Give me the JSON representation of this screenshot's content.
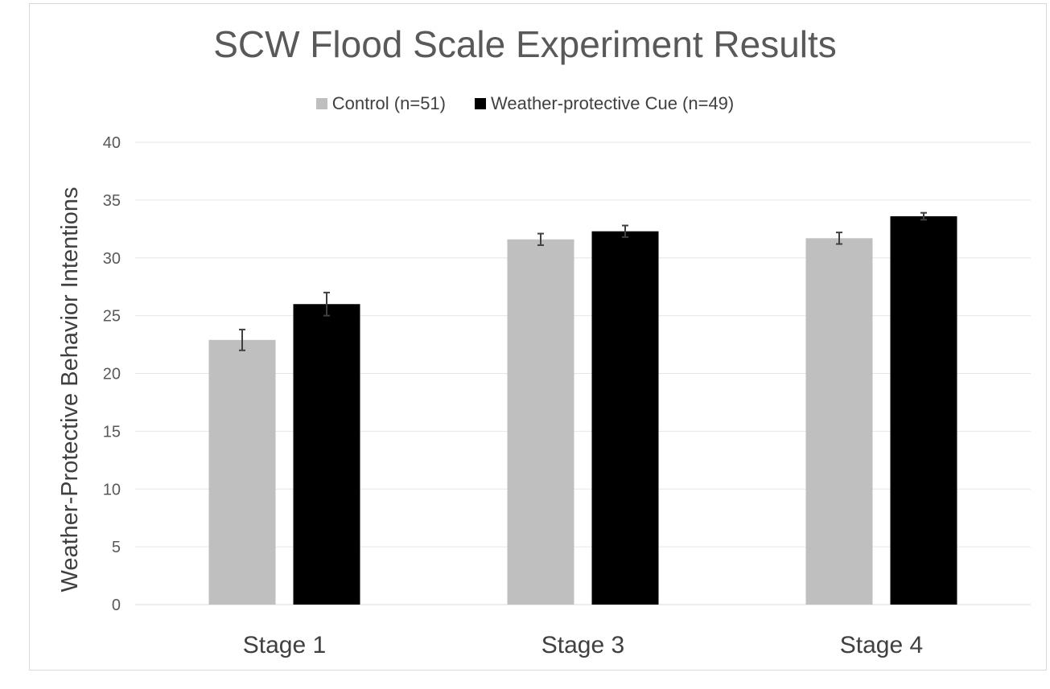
{
  "chart_data": {
    "type": "bar",
    "title": "SCW Flood Scale Experiment Results",
    "xlabel": "",
    "ylabel": "Weather-Protective Behavior Intentions",
    "categories": [
      "Stage 1",
      "Stage 3",
      "Stage 4"
    ],
    "series": [
      {
        "name": "Control (n=51)",
        "color": "#bfbfbf",
        "values": [
          22.9,
          31.6,
          31.7
        ],
        "errors": [
          0.9,
          0.5,
          0.5
        ]
      },
      {
        "name": "Weather-protective Cue (n=49)",
        "color": "#000000",
        "values": [
          26.0,
          32.3,
          33.6
        ],
        "errors": [
          1.0,
          0.5,
          0.3
        ]
      }
    ],
    "ylim": [
      0,
      40
    ],
    "yticks": [
      0,
      5,
      10,
      15,
      20,
      25,
      30,
      35,
      40
    ],
    "grid": true,
    "legend_position": "top"
  }
}
